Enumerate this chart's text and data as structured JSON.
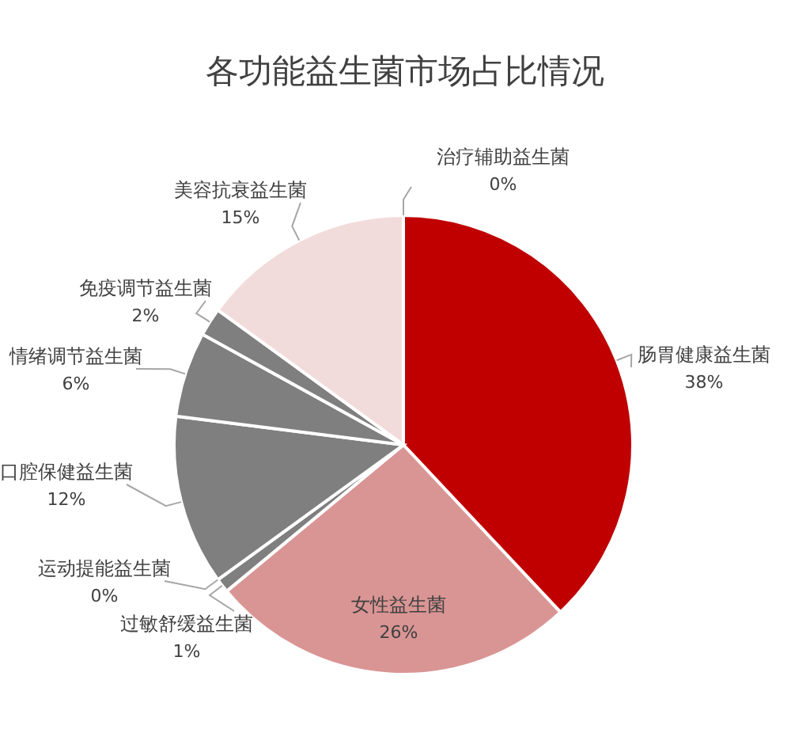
{
  "chart_data": {
    "type": "pie",
    "title": "各功能益生菌市场占比情况",
    "categories": [
      "肠胃健康益生菌",
      "女性益生菌",
      "过敏舒缓益生菌",
      "运动提能益生菌",
      "口腔保健益生菌",
      "情绪调节益生菌",
      "免疫调节益生菌",
      "美容抗衰益生菌",
      "治疗辅助益生菌"
    ],
    "values": [
      38,
      26,
      1,
      0,
      12,
      6,
      2,
      15,
      0
    ],
    "value_labels": [
      "38%",
      "26%",
      "1%",
      "0%",
      "12%",
      "6%",
      "2%",
      "15%",
      "0%"
    ],
    "colors": [
      "#c00000",
      "#d99594",
      "#7f7f7f",
      "#7f7f7f",
      "#7f7f7f",
      "#7f7f7f",
      "#7f7f7f",
      "#f2dcdb",
      "#7f7f7f"
    ]
  }
}
